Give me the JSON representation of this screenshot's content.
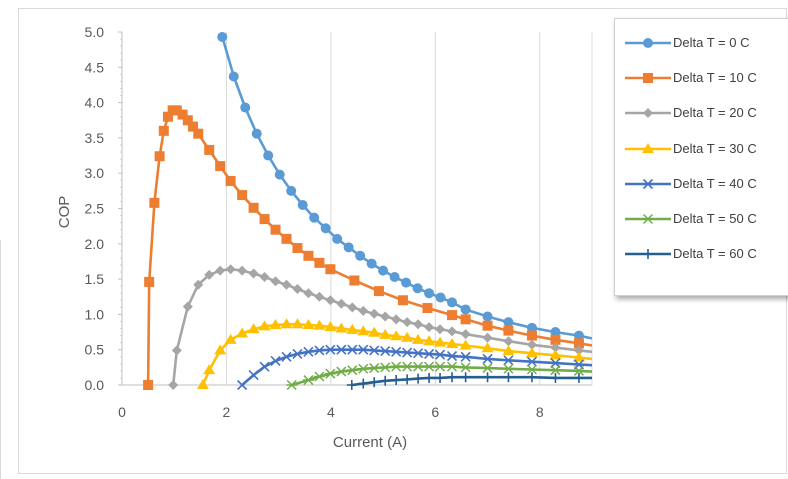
{
  "chart_data": {
    "type": "line",
    "title": "",
    "xlabel": "Current (A)",
    "ylabel": "COP",
    "xlim": [
      0,
      9
    ],
    "ylim": [
      0,
      5
    ],
    "x_ticks": [
      "0",
      "2",
      "4",
      "6",
      "8"
    ],
    "y_ticks": [
      "0.0",
      "0.5",
      "1.0",
      "1.5",
      "2.0",
      "2.5",
      "3.0",
      "3.5",
      "4.0",
      "4.5",
      "5.0"
    ],
    "grid": "vertical",
    "legend_position": "right",
    "series": [
      {
        "name": "Delta T = 0 C",
        "color": "#5b9bd5",
        "marker": "circle",
        "points": [
          [
            1.92,
            4.93
          ],
          [
            2.14,
            4.37
          ],
          [
            2.36,
            3.93
          ],
          [
            2.58,
            3.56
          ],
          [
            2.8,
            3.25
          ],
          [
            3.02,
            2.98
          ],
          [
            3.24,
            2.75
          ],
          [
            3.46,
            2.55
          ],
          [
            3.68,
            2.37
          ],
          [
            3.9,
            2.22
          ],
          [
            4.12,
            2.07
          ],
          [
            4.34,
            1.95
          ],
          [
            4.56,
            1.83
          ],
          [
            4.78,
            1.72
          ],
          [
            5.0,
            1.62
          ],
          [
            5.22,
            1.53
          ],
          [
            5.44,
            1.45
          ],
          [
            5.66,
            1.37
          ],
          [
            5.88,
            1.3
          ],
          [
            6.1,
            1.24
          ],
          [
            6.32,
            1.17
          ],
          [
            6.58,
            1.07
          ],
          [
            7.0,
            0.97
          ],
          [
            7.4,
            0.89
          ],
          [
            7.85,
            0.81
          ],
          [
            8.3,
            0.75
          ],
          [
            8.75,
            0.7
          ],
          [
            9.0,
            0.66
          ]
        ]
      },
      {
        "name": "Delta T = 10 C",
        "color": "#ed7d31",
        "marker": "square",
        "points": [
          [
            0.5,
            0.0
          ],
          [
            0.52,
            1.46
          ],
          [
            0.62,
            2.58
          ],
          [
            0.72,
            3.24
          ],
          [
            0.8,
            3.6
          ],
          [
            0.88,
            3.8
          ],
          [
            0.97,
            3.89
          ],
          [
            1.05,
            3.89
          ],
          [
            1.16,
            3.83
          ],
          [
            1.26,
            3.75
          ],
          [
            1.36,
            3.66
          ],
          [
            1.46,
            3.56
          ],
          [
            1.67,
            3.33
          ],
          [
            1.88,
            3.1
          ],
          [
            2.08,
            2.89
          ],
          [
            2.3,
            2.69
          ],
          [
            2.52,
            2.51
          ],
          [
            2.73,
            2.35
          ],
          [
            2.94,
            2.2
          ],
          [
            3.15,
            2.07
          ],
          [
            3.36,
            1.94
          ],
          [
            3.57,
            1.83
          ],
          [
            3.78,
            1.73
          ],
          [
            3.99,
            1.64
          ],
          [
            4.45,
            1.48
          ],
          [
            4.92,
            1.33
          ],
          [
            5.38,
            1.2
          ],
          [
            5.85,
            1.09
          ],
          [
            6.32,
            0.99
          ],
          [
            6.58,
            0.93
          ],
          [
            7.0,
            0.84
          ],
          [
            7.4,
            0.77
          ],
          [
            7.85,
            0.7
          ],
          [
            8.3,
            0.64
          ],
          [
            8.75,
            0.59
          ],
          [
            9.0,
            0.56
          ]
        ]
      },
      {
        "name": "Delta T = 20 C",
        "color": "#a5a5a5",
        "marker": "diamond",
        "points": [
          [
            0.98,
            0.0
          ],
          [
            1.05,
            0.49
          ],
          [
            1.26,
            1.11
          ],
          [
            1.46,
            1.42
          ],
          [
            1.67,
            1.56
          ],
          [
            1.88,
            1.62
          ],
          [
            2.08,
            1.64
          ],
          [
            2.3,
            1.62
          ],
          [
            2.52,
            1.58
          ],
          [
            2.73,
            1.53
          ],
          [
            2.94,
            1.47
          ],
          [
            3.15,
            1.42
          ],
          [
            3.36,
            1.36
          ],
          [
            3.57,
            1.3
          ],
          [
            3.78,
            1.25
          ],
          [
            3.99,
            1.2
          ],
          [
            4.2,
            1.15
          ],
          [
            4.41,
            1.1
          ],
          [
            4.62,
            1.05
          ],
          [
            4.83,
            1.01
          ],
          [
            5.04,
            0.97
          ],
          [
            5.25,
            0.93
          ],
          [
            5.46,
            0.89
          ],
          [
            5.67,
            0.86
          ],
          [
            5.88,
            0.82
          ],
          [
            6.09,
            0.79
          ],
          [
            6.32,
            0.76
          ],
          [
            6.58,
            0.72
          ],
          [
            7.0,
            0.67
          ],
          [
            7.4,
            0.62
          ],
          [
            7.85,
            0.57
          ],
          [
            8.3,
            0.53
          ],
          [
            8.75,
            0.49
          ],
          [
            9.0,
            0.47
          ]
        ]
      },
      {
        "name": "Delta T = 30 C",
        "color": "#ffc000",
        "marker": "triangle",
        "points": [
          [
            1.55,
            0.0
          ],
          [
            1.67,
            0.21
          ],
          [
            1.88,
            0.49
          ],
          [
            2.08,
            0.64
          ],
          [
            2.3,
            0.73
          ],
          [
            2.52,
            0.79
          ],
          [
            2.73,
            0.83
          ],
          [
            2.94,
            0.85
          ],
          [
            3.15,
            0.86
          ],
          [
            3.36,
            0.86
          ],
          [
            3.57,
            0.85
          ],
          [
            3.78,
            0.84
          ],
          [
            3.99,
            0.82
          ],
          [
            4.2,
            0.8
          ],
          [
            4.41,
            0.78
          ],
          [
            4.62,
            0.76
          ],
          [
            4.83,
            0.74
          ],
          [
            5.04,
            0.71
          ],
          [
            5.25,
            0.69
          ],
          [
            5.46,
            0.67
          ],
          [
            5.67,
            0.64
          ],
          [
            5.88,
            0.62
          ],
          [
            6.09,
            0.6
          ],
          [
            6.32,
            0.58
          ],
          [
            6.58,
            0.56
          ],
          [
            7.0,
            0.52
          ],
          [
            7.4,
            0.48
          ],
          [
            7.85,
            0.45
          ],
          [
            8.3,
            0.42
          ],
          [
            8.75,
            0.39
          ],
          [
            9.0,
            0.37
          ]
        ]
      },
      {
        "name": "Delta T = 40 C",
        "color": "#4472c4",
        "marker": "x",
        "points": [
          [
            2.3,
            0.0
          ],
          [
            2.52,
            0.14
          ],
          [
            2.73,
            0.26
          ],
          [
            2.94,
            0.34
          ],
          [
            3.15,
            0.4
          ],
          [
            3.36,
            0.44
          ],
          [
            3.57,
            0.47
          ],
          [
            3.78,
            0.49
          ],
          [
            3.99,
            0.5
          ],
          [
            4.2,
            0.5
          ],
          [
            4.41,
            0.5
          ],
          [
            4.62,
            0.5
          ],
          [
            4.83,
            0.49
          ],
          [
            5.04,
            0.48
          ],
          [
            5.25,
            0.47
          ],
          [
            5.46,
            0.46
          ],
          [
            5.67,
            0.45
          ],
          [
            5.88,
            0.44
          ],
          [
            6.09,
            0.43
          ],
          [
            6.32,
            0.41
          ],
          [
            6.58,
            0.4
          ],
          [
            7.0,
            0.37
          ],
          [
            7.4,
            0.35
          ],
          [
            7.85,
            0.33
          ],
          [
            8.3,
            0.31
          ],
          [
            8.75,
            0.29
          ],
          [
            9.0,
            0.28
          ]
        ]
      },
      {
        "name": "Delta T = 50 C",
        "color": "#70ad47",
        "marker": "asterisk",
        "points": [
          [
            3.25,
            0.0
          ],
          [
            3.57,
            0.07
          ],
          [
            3.78,
            0.12
          ],
          [
            3.99,
            0.16
          ],
          [
            4.2,
            0.19
          ],
          [
            4.41,
            0.21
          ],
          [
            4.62,
            0.23
          ],
          [
            4.83,
            0.24
          ],
          [
            5.04,
            0.25
          ],
          [
            5.25,
            0.26
          ],
          [
            5.46,
            0.26
          ],
          [
            5.67,
            0.26
          ],
          [
            5.88,
            0.26
          ],
          [
            6.09,
            0.26
          ],
          [
            6.32,
            0.26
          ],
          [
            6.58,
            0.25
          ],
          [
            7.0,
            0.24
          ],
          [
            7.4,
            0.23
          ],
          [
            7.85,
            0.22
          ],
          [
            8.3,
            0.21
          ],
          [
            8.75,
            0.2
          ],
          [
            9.0,
            0.19
          ]
        ]
      },
      {
        "name": "Delta T = 60 C",
        "color": "#255e91",
        "marker": "plus",
        "points": [
          [
            4.4,
            0.0
          ],
          [
            4.62,
            0.02
          ],
          [
            4.83,
            0.04
          ],
          [
            5.04,
            0.06
          ],
          [
            5.25,
            0.07
          ],
          [
            5.46,
            0.08
          ],
          [
            5.67,
            0.09
          ],
          [
            5.88,
            0.1
          ],
          [
            6.09,
            0.1
          ],
          [
            6.32,
            0.11
          ],
          [
            6.58,
            0.11
          ],
          [
            7.0,
            0.11
          ],
          [
            7.4,
            0.11
          ],
          [
            7.85,
            0.11
          ],
          [
            8.3,
            0.1
          ],
          [
            8.75,
            0.1
          ],
          [
            9.0,
            0.1
          ]
        ]
      }
    ]
  }
}
